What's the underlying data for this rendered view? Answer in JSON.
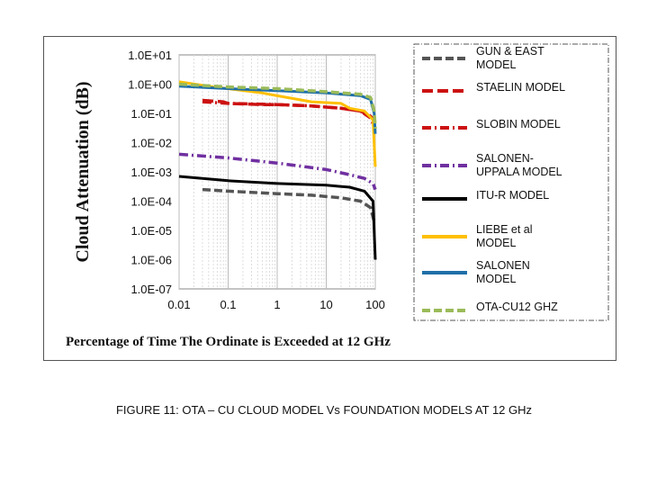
{
  "caption": "FIGURE 11: OTA – CU CLOUD MODEL  Vs  FOUNDATION MODELS AT 12 GHz",
  "chart_data": {
    "type": "line",
    "title": "",
    "xlabel": "Percentage of Time The Ordinate is Exceeded at 12 GHz",
    "ylabel": "Cloud Attenuation  (dB)",
    "x_scale": "log",
    "y_scale": "log",
    "xlim": [
      0.01,
      100
    ],
    "ylim": [
      1e-07,
      10
    ],
    "x_ticks": [
      "0.01",
      "0.1",
      "1",
      "10",
      "100"
    ],
    "y_ticks": [
      "1.0E+01",
      "1.0E+00",
      "1.0E-01",
      "1.0E-02",
      "1.0E-03",
      "1.0E-04",
      "1.0E-05",
      "1.0E-06",
      "1.0E-07"
    ],
    "grid": "vertical",
    "legend_position": "right",
    "series": [
      {
        "name": "GUN & EAST MODEL",
        "color": "#555555",
        "dash": "dash",
        "x": [
          0.03,
          0.1,
          1,
          5,
          20,
          50,
          80,
          95
        ],
        "y": [
          0.00025,
          0.00022,
          0.00018,
          0.00016,
          0.00013,
          0.0001,
          6e-05,
          2e-05
        ]
      },
      {
        "name": "STAELIN MODEL",
        "color": "#cc1111",
        "dash": "longdash",
        "x": [
          0.03,
          0.08,
          0.1,
          0.5,
          1,
          5,
          20,
          50,
          80,
          100
        ],
        "y": [
          0.28,
          0.25,
          0.22,
          0.2,
          0.2,
          0.18,
          0.15,
          0.12,
          0.08,
          0.05
        ]
      },
      {
        "name": "SLOBIN MODEL",
        "color": "#cc1111",
        "dash": "dashdot",
        "x": [
          0.03,
          0.1,
          1,
          5,
          20,
          50,
          80,
          100
        ],
        "y": [
          0.25,
          0.22,
          0.2,
          0.18,
          0.15,
          0.12,
          0.07,
          0.03
        ]
      },
      {
        "name": "SALONEN-UPPALA MODEL",
        "color": "#7030a0",
        "dash": "dashdot",
        "x": [
          0.01,
          0.1,
          1,
          10,
          30,
          60,
          90,
          100
        ],
        "y": [
          0.004,
          0.003,
          0.002,
          0.0012,
          0.0008,
          0.0006,
          0.0004,
          0.00025
        ]
      },
      {
        "name": "ITU-R MODEL",
        "color": "#000000",
        "dash": "solid",
        "x": [
          0.01,
          0.1,
          1,
          10,
          30,
          60,
          90,
          100
        ],
        "y": [
          0.0007,
          0.0005,
          0.0004,
          0.00035,
          0.0003,
          0.00022,
          0.0001,
          1e-06
        ]
      },
      {
        "name": "LIEBE et al MODEL",
        "color": "#ffc000",
        "dash": "solid",
        "x": [
          0.01,
          0.05,
          0.1,
          0.5,
          1,
          5,
          20,
          30,
          60,
          90,
          100
        ],
        "y": [
          1.2,
          0.8,
          0.7,
          0.5,
          0.4,
          0.25,
          0.22,
          0.15,
          0.12,
          0.06,
          0.0015
        ]
      },
      {
        "name": "SALONEN MODEL",
        "color": "#1f6fa8",
        "dash": "solid",
        "x": [
          0.01,
          0.1,
          1,
          10,
          50,
          80,
          95,
          100
        ],
        "y": [
          0.85,
          0.7,
          0.6,
          0.5,
          0.4,
          0.3,
          0.1,
          0.02
        ]
      },
      {
        "name": "OTA-CU12 GHZ",
        "color": "#9bbb59",
        "dash": "dash",
        "x": [
          0.01,
          0.1,
          1,
          10,
          50,
          80,
          95,
          100
        ],
        "y": [
          1.0,
          0.8,
          0.7,
          0.55,
          0.45,
          0.35,
          0.12,
          0.03
        ]
      }
    ]
  }
}
